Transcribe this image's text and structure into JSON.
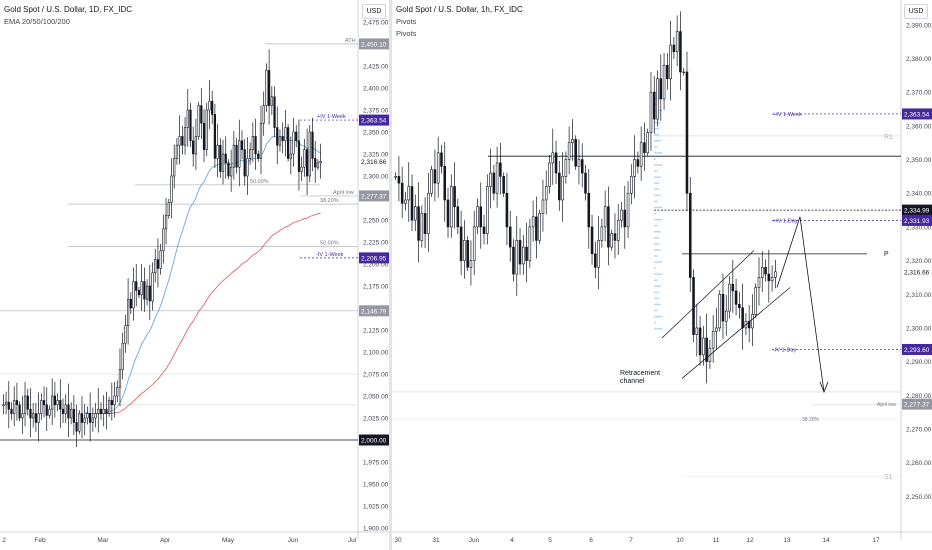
{
  "left_chart": {
    "title": "Gold Spot / U.S. Dollar, 1D, FX_IDC",
    "indicator": "EMA 20/50/100/200",
    "currency": "USD",
    "colors": {
      "ema_fast": "#6fa8dc",
      "ema_slow": "#e06666",
      "candle": "#131722",
      "tag": "#4527a0",
      "tag_grey": "#9598a1",
      "level": "#b2b5be"
    }
  },
  "right_chart": {
    "title": "Gold Spot / U.S. Dollar, 1h, FX_IDC",
    "indicator_1": "Pivots",
    "indicator_2": "Pivots",
    "currency": "USD",
    "annotation": "Retracement\nchannel"
  },
  "chart_data": [
    {
      "type": "candlestick",
      "title": "Gold Spot / U.S. Dollar, 1D, FX_IDC",
      "ylim": [
        1900,
        2475
      ],
      "y_ticks": [
        1900,
        1925,
        1950,
        1975,
        2000,
        2025,
        2050,
        2075,
        2100,
        2125,
        2150,
        2175,
        2200,
        2225,
        2250,
        2275,
        2300,
        2325,
        2350,
        2375,
        2400,
        2425,
        2450,
        2475
      ],
      "y_tick_labels": [
        "1,900.00",
        "1,925.00",
        "1,950.00",
        "1,975.00",
        "2,000.00",
        "2,025.00",
        "2,050.00",
        "2,075.00",
        "2,100.00",
        "2,125.00",
        "2,150.00",
        "2,175.00",
        "2,200.00",
        "2,225.00",
        "2,250.00",
        "2,275.00",
        "2,300.00",
        "2,325.00",
        "2,350.00",
        "2,375.00",
        "2,400.00",
        "2,425.00",
        "2,450.00",
        "2,475.00"
      ],
      "x_ticks": [
        "2",
        "Feb",
        "Mar",
        "Apr",
        "May",
        "Jun",
        "Jul"
      ],
      "close_path": [
        2040,
        2043,
        2035,
        2030,
        2045,
        2040,
        2025,
        2030,
        2050,
        2035,
        2025,
        2030,
        2020,
        2030,
        2045,
        2040,
        2028,
        2035,
        2050,
        2040,
        2045,
        2035,
        2030,
        2040,
        2025,
        2035,
        2020,
        2010,
        2030,
        2020,
        2025,
        2030,
        2020,
        2025,
        2030,
        2035,
        2030,
        2035,
        2030,
        2045,
        2040,
        2050,
        2060,
        2080,
        2110,
        2130,
        2160,
        2150,
        2180,
        2170,
        2165,
        2180,
        2160,
        2175,
        2158,
        2190,
        2205,
        2195,
        2215,
        2240,
        2255,
        2270,
        2300,
        2320,
        2335,
        2345,
        2335,
        2355,
        2375,
        2340,
        2325,
        2345,
        2380,
        2360,
        2330,
        2375,
        2385,
        2370,
        2320,
        2335,
        2305,
        2325,
        2315,
        2300,
        2310,
        2335,
        2310,
        2340,
        2330,
        2300,
        2320,
        2330,
        2345,
        2325,
        2320,
        2360,
        2380,
        2420,
        2380,
        2390,
        2355,
        2335,
        2345,
        2340,
        2355,
        2320,
        2325,
        2350,
        2340,
        2305,
        2310,
        2330,
        2300,
        2350,
        2320,
        2310,
        2315,
        2316.66
      ],
      "ema_fast": [
        2035,
        2036,
        2034,
        2032,
        2034,
        2033,
        2031,
        2032,
        2034,
        2033,
        2031,
        2031,
        2030,
        2030,
        2032,
        2033,
        2032,
        2032,
        2033,
        2033,
        2034,
        2034,
        2034,
        2035,
        2035,
        2035,
        2034,
        2032,
        2032,
        2031,
        2031,
        2031,
        2030,
        2030,
        2030,
        2030,
        2030,
        2030,
        2030,
        2032,
        2033,
        2035,
        2038,
        2042,
        2049,
        2057,
        2068,
        2076,
        2086,
        2094,
        2101,
        2109,
        2114,
        2120,
        2124,
        2131,
        2139,
        2145,
        2153,
        2162,
        2172,
        2182,
        2193,
        2205,
        2217,
        2228,
        2237,
        2247,
        2257,
        2265,
        2269,
        2275,
        2284,
        2290,
        2293,
        2300,
        2306,
        2310,
        2311,
        2313,
        2313,
        2314,
        2314,
        2313,
        2313,
        2315,
        2315,
        2317,
        2318,
        2316,
        2316,
        2318,
        2320,
        2320,
        2320,
        2323,
        2328,
        2336,
        2340,
        2344,
        2345,
        2343,
        2343,
        2343,
        2344,
        2342,
        2340,
        2341,
        2341,
        2337,
        2335,
        2334,
        2331,
        2333,
        2332,
        2330,
        2328,
        2326
      ],
      "ema_slow": [
        2030,
        2031,
        2031,
        2031,
        2031,
        2031,
        2031,
        2031,
        2031,
        2031,
        2031,
        2031,
        2030,
        2030,
        2030,
        2030,
        2030,
        2030,
        2030,
        2030,
        2031,
        2031,
        2031,
        2031,
        2031,
        2031,
        2031,
        2030,
        2030,
        2030,
        2030,
        2030,
        2030,
        2030,
        2030,
        2030,
        2030,
        2030,
        2030,
        2030,
        2030,
        2031,
        2031,
        2032,
        2034,
        2036,
        2039,
        2041,
        2044,
        2047,
        2050,
        2053,
        2055,
        2058,
        2060,
        2063,
        2066,
        2069,
        2073,
        2077,
        2081,
        2086,
        2091,
        2097,
        2103,
        2109,
        2114,
        2120,
        2126,
        2131,
        2135,
        2140,
        2146,
        2150,
        2154,
        2159,
        2164,
        2168,
        2171,
        2175,
        2178,
        2181,
        2184,
        2186,
        2189,
        2192,
        2194,
        2197,
        2200,
        2202,
        2204,
        2207,
        2210,
        2212,
        2214,
        2217,
        2221,
        2225,
        2228,
        2232,
        2234,
        2236,
        2238,
        2240,
        2242,
        2243,
        2245,
        2247,
        2248,
        2249,
        2250,
        2252,
        2252,
        2254,
        2255,
        2256,
        2257,
        2258
      ],
      "levels": [
        {
          "name": "ATH",
          "value": 2450.1,
          "label": "2,450.10"
        },
        {
          "name": "+IV 1-Week",
          "value": 2363.54,
          "label": "2,363.54"
        },
        {
          "name": "50.00%",
          "value": 2290
        },
        {
          "name": "38.20%",
          "value": 2268
        },
        {
          "name": "April low",
          "value": 2277.37,
          "label": "2,277.37"
        },
        {
          "name": "50.00%",
          "value": 2220
        },
        {
          "name": "-IV 1-Week",
          "value": 2206.95,
          "label": "2,206.95"
        },
        {
          "name": "",
          "value": 2146.79,
          "label": "2,146.79"
        },
        {
          "name": "",
          "value": 2000.0,
          "label": "2,000.00"
        }
      ],
      "last_price": "2,316.66"
    },
    {
      "type": "candlestick",
      "title": "Gold Spot / U.S. Dollar, 1h, FX_IDC",
      "ylim": [
        2240,
        2395
      ],
      "y_ticks": [
        2250,
        2260,
        2270,
        2280,
        2290,
        2300,
        2310,
        2320,
        2330,
        2340,
        2350,
        2360,
        2370,
        2380,
        2390
      ],
      "y_tick_labels": [
        "2,250.00",
        "2,260.00",
        "2,270.00",
        "2,280.00",
        "2,290.00",
        "2,300.00",
        "2,310.00",
        "2,320.00",
        "2,330.00",
        "2,340.00",
        "2,350.00",
        "2,360.00",
        "2,370.00",
        "2,380.00",
        "2,390.00"
      ],
      "x_ticks": [
        "30",
        "31",
        "Jun",
        "4",
        "5",
        "6",
        "7",
        "10",
        "11",
        "12",
        "13",
        "14",
        "17"
      ],
      "close_path": [
        2345,
        2343,
        2337,
        2338,
        2342,
        2332,
        2336,
        2326,
        2334,
        2328,
        2340,
        2347,
        2343,
        2352,
        2348,
        2338,
        2330,
        2342,
        2336,
        2330,
        2320,
        2326,
        2318,
        2320,
        2330,
        2336,
        2330,
        2328,
        2342,
        2346,
        2340,
        2349,
        2345,
        2340,
        2330,
        2324,
        2316,
        2326,
        2319,
        2324,
        2320,
        2330,
        2333,
        2326,
        2334,
        2338,
        2342,
        2349,
        2352,
        2346,
        2338,
        2345,
        2350,
        2355,
        2356,
        2348,
        2350,
        2346,
        2340,
        2330,
        2322,
        2318,
        2326,
        2330,
        2336,
        2324,
        2328,
        2326,
        2332,
        2335,
        2330,
        2340,
        2345,
        2350,
        2348,
        2355,
        2352,
        2358,
        2370,
        2362,
        2374,
        2368,
        2378,
        2374,
        2384,
        2382,
        2388,
        2376,
        2376,
        2340,
        2315,
        2298,
        2300,
        2292,
        2297,
        2290,
        2294,
        2299,
        2300,
        2310,
        2302,
        2305,
        2313,
        2311,
        2307,
        2306,
        2300,
        2302,
        2300,
        2304,
        2312,
        2315,
        2318,
        2316,
        2314,
        2315,
        2316.66
      ],
      "levels": [
        {
          "name": "R1",
          "value": 2357
        },
        {
          "name": "",
          "value": 2351
        },
        {
          "name": "+IV 1-Week",
          "value": 2363.54,
          "label": "2,363.54"
        },
        {
          "name": "",
          "value": 2334.99,
          "label": "2,334.99"
        },
        {
          "name": "+IV 1-Day",
          "value": 2331.93,
          "label": "2,331.93"
        },
        {
          "name": "P",
          "value": 2322
        },
        {
          "name": "-IV 1-Day",
          "value": 2293.6,
          "label": "2,293.60"
        },
        {
          "name": "April low",
          "value": 2277.37,
          "label": "2,277.37"
        },
        {
          "name": "38.20%",
          "value": 2273
        },
        {
          "name": "S1",
          "value": 2256
        }
      ],
      "last_price": "2,316.66"
    }
  ]
}
